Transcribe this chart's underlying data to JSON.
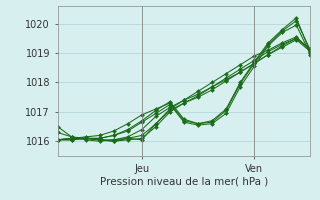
{
  "xlabel": "Pression niveau de la mer( hPa )",
  "bg_color": "#d8eff0",
  "grid_color": "#b0d0d2",
  "line_color": "#1a6b1a",
  "ylim": [
    1015.5,
    1020.6
  ],
  "yticks": [
    1016,
    1017,
    1018,
    1019,
    1020
  ],
  "xlim": [
    0,
    18
  ],
  "x_jeu": 6,
  "x_ven": 14,
  "xtick_labels": [
    "Jeu",
    "Ven"
  ],
  "series": [
    [
      1016.05,
      1016.1,
      1016.1,
      1016.05,
      1016.0,
      1016.1,
      1016.05,
      1016.6,
      1017.1,
      1017.4,
      1017.7,
      1018.0,
      1018.3,
      1018.6,
      1018.9,
      1019.1,
      1019.35,
      1019.55,
      1019.1
    ],
    [
      1016.3,
      1016.15,
      1016.1,
      1016.05,
      1016.05,
      1016.1,
      1016.2,
      1016.6,
      1017.05,
      1017.3,
      1017.55,
      1017.85,
      1018.15,
      1018.45,
      1018.75,
      1019.05,
      1019.3,
      1019.5,
      1019.15
    ],
    [
      1016.5,
      1016.15,
      1016.05,
      1016.0,
      1016.05,
      1016.15,
      1016.4,
      1016.85,
      1017.15,
      1017.4,
      1017.6,
      1017.85,
      1018.1,
      1018.35,
      1018.65,
      1018.95,
      1019.25,
      1019.5,
      1019.1
    ],
    [
      1016.05,
      1016.05,
      1016.1,
      1016.05,
      1016.0,
      1016.05,
      1016.1,
      1016.5,
      1017.0,
      1017.3,
      1017.5,
      1017.75,
      1018.05,
      1018.35,
      1018.65,
      1018.95,
      1019.2,
      1019.45,
      1019.05
    ],
    [
      1016.05,
      1016.05,
      1016.1,
      1016.1,
      1016.2,
      1016.4,
      1016.7,
      1017.05,
      1017.35,
      1016.75,
      1016.6,
      1016.65,
      1017.05,
      1017.95,
      1018.65,
      1019.3,
      1019.75,
      1020.1,
      1019.1
    ],
    [
      1016.05,
      1016.1,
      1016.1,
      1016.1,
      1016.2,
      1016.35,
      1016.65,
      1016.95,
      1017.25,
      1016.65,
      1016.55,
      1016.6,
      1016.95,
      1017.85,
      1018.55,
      1019.25,
      1019.7,
      1019.95,
      1018.95
    ],
    [
      1016.05,
      1016.1,
      1016.15,
      1016.2,
      1016.35,
      1016.6,
      1016.9,
      1017.1,
      1017.3,
      1016.7,
      1016.6,
      1016.7,
      1017.1,
      1018.0,
      1018.7,
      1019.35,
      1019.8,
      1020.2,
      1019.0
    ]
  ]
}
